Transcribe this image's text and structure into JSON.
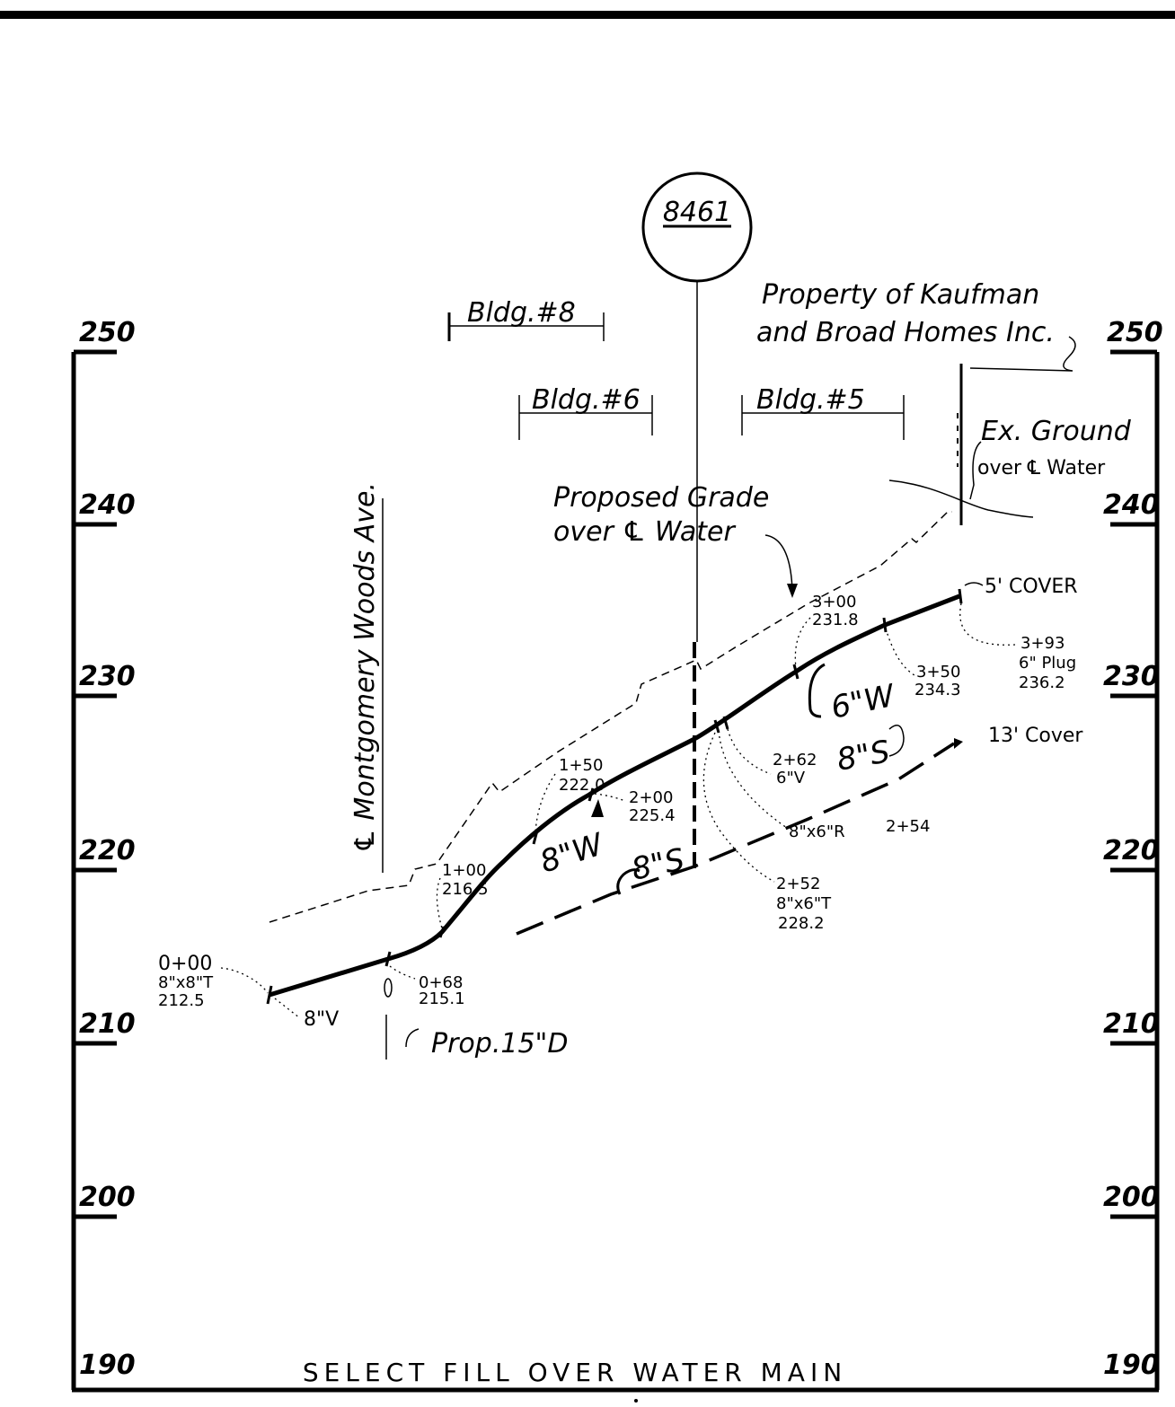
{
  "sheet_number": "8461",
  "elevations_left": [
    "250",
    "240",
    "230",
    "220",
    "210",
    "200",
    "190"
  ],
  "elevations_right": [
    "250",
    "240",
    "230",
    "220",
    "210",
    "200",
    "190"
  ],
  "buildings": {
    "bldg8": "Bldg.#8",
    "bldg6": "Bldg.#6",
    "bldg5": "Bldg.#5"
  },
  "property_note": {
    "line1": "Property of Kaufman",
    "line2": "and Broad Homes Inc."
  },
  "street_label": "℄ Montgomery Woods Ave.",
  "existing_ground_label": {
    "line1": "Ex. Ground",
    "line2": "over ℄ Water"
  },
  "proposed_grade_label": {
    "line1": "Proposed Grade",
    "line2": "over ℄ Water"
  },
  "cover_labels": {
    "top": "5' COVER",
    "sewer": "13' Cover"
  },
  "pipe_labels": {
    "water_8": "8\"W",
    "water_6": "6\"W",
    "sewer_8_left": "8\"S",
    "sewer_8_right": "8\"S"
  },
  "stations": {
    "sta_0_00": {
      "station": "0+00",
      "fitting": "8\"x8\"T",
      "elev": "212.5"
    },
    "valve_8": {
      "label": "8\"V"
    },
    "sta_0_68": {
      "station": "0+68",
      "elev": "215.1"
    },
    "prop_drain": {
      "label": "Prop.15\"D"
    },
    "sta_1_00": {
      "station": "1+00",
      "elev": "216.5"
    },
    "sta_1_50": {
      "station": "1+50",
      "elev": "222.0"
    },
    "sta_2_00": {
      "station": "2+00",
      "elev": "225.4"
    },
    "sta_2_62": {
      "station": "2+62",
      "fitting": "6\"V"
    },
    "sta_2_54": {
      "fitting": "8\"x6\"R",
      "station": "2+54"
    },
    "sta_2_52": {
      "station": "2+52",
      "fitting": "8\"x6\"T",
      "elev": "228.2"
    },
    "sta_3_00": {
      "station": "3+00",
      "elev": "231.8"
    },
    "sta_3_50": {
      "station": "3+50",
      "elev": "234.3"
    },
    "sta_3_93": {
      "station": "3+93",
      "fitting": "6\" Plug",
      "elev": "236.2"
    }
  },
  "footer_note": "SELECT FILL OVER WATER MAIN"
}
